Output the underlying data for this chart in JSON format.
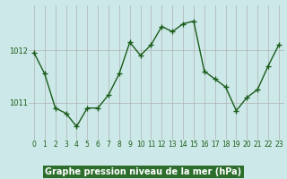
{
  "x": [
    0,
    1,
    2,
    3,
    4,
    5,
    6,
    7,
    8,
    9,
    10,
    11,
    12,
    13,
    14,
    15,
    16,
    17,
    18,
    19,
    20,
    21,
    22,
    23
  ],
  "y": [
    1011.95,
    1011.55,
    1010.9,
    1010.8,
    1010.55,
    1010.9,
    1010.9,
    1011.15,
    1011.55,
    1012.15,
    1011.9,
    1012.1,
    1012.45,
    1012.35,
    1012.5,
    1012.55,
    1011.6,
    1011.45,
    1011.3,
    1010.85,
    1011.1,
    1011.25,
    1011.7,
    1012.1
  ],
  "line_color": "#1a5c1a",
  "marker": "+",
  "markersize": 4,
  "linewidth": 1.0,
  "bg_color": "#cce8e8",
  "plot_bg_color": "#cce8e8",
  "grid_color": "#b0b0b0",
  "xlabel": "Graphe pression niveau de la mer (hPa)",
  "xlabel_fontsize": 7,
  "yticks": [
    1011,
    1012
  ],
  "ylim": [
    1010.3,
    1012.85
  ],
  "xlim": [
    -0.5,
    23.5
  ],
  "tick_fontsize": 6,
  "tick_color": "#1a5c1a",
  "bottom_label_bg": "#2d6e2d",
  "bottom_label_text": "#ffffff"
}
